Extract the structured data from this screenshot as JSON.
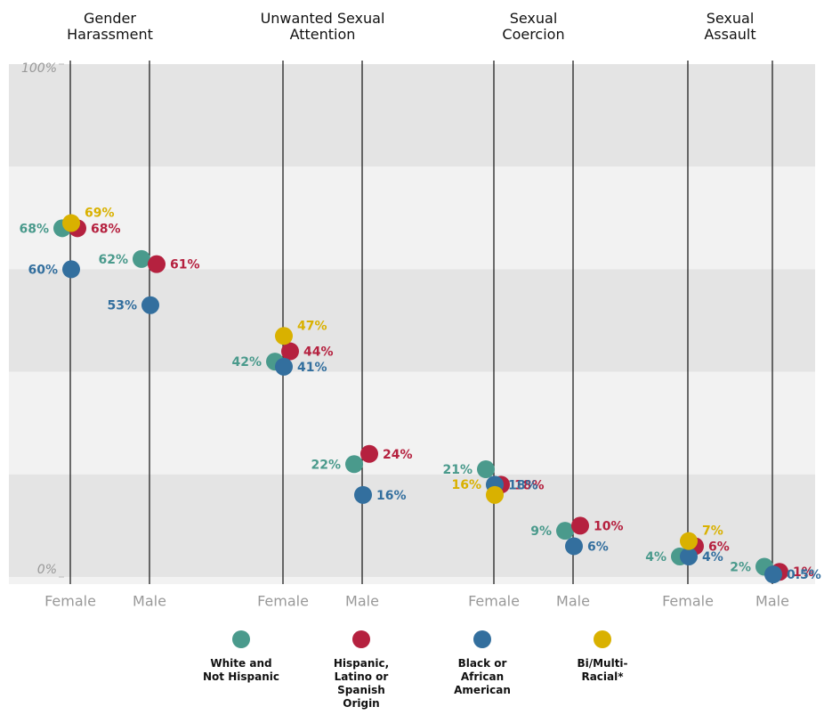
{
  "chart_data": {
    "type": "dot",
    "groups": [
      "Gender Harassment",
      "Unwanted Sexual Attention",
      "Sexual Coercion",
      "Sexual Assault"
    ],
    "categories": [
      "Female",
      "Male",
      "Female",
      "Male",
      "Female",
      "Male",
      "Female",
      "Male"
    ],
    "series": [
      {
        "name": "White and Not Hispanic",
        "color": "#4a9a8c",
        "values": [
          68,
          62,
          42,
          22,
          21,
          9,
          4,
          2
        ],
        "value_labels": [
          "68%",
          "62%",
          "42%",
          "22%",
          "21%",
          "9%",
          "4%",
          "2%"
        ]
      },
      {
        "name": "Hispanic, Latino or Spanish Origin",
        "color": "#b5213f",
        "values": [
          68,
          61,
          44,
          24,
          18,
          10,
          6,
          1
        ],
        "value_labels": [
          "68%",
          "61%",
          "44%",
          "24%",
          "18%",
          "10%",
          "6%",
          "1%"
        ]
      },
      {
        "name": "Black or African American",
        "color": "#336f9e",
        "values": [
          60,
          53,
          41,
          16,
          18,
          6,
          4,
          0.5
        ],
        "value_labels": [
          "60%",
          "53%",
          "41%",
          "16%",
          "18%",
          "6%",
          "4%",
          "0.5%"
        ]
      },
      {
        "name": "Bi/Multi-Racial*",
        "color": "#d9b100",
        "values": [
          69,
          null,
          47,
          null,
          16,
          null,
          7,
          null
        ],
        "value_labels": [
          "69%",
          null,
          "47%",
          null,
          "16%",
          null,
          "7%",
          null
        ]
      }
    ],
    "ylim": [
      0,
      100
    ],
    "yticks": [
      {
        "value": 0,
        "label": "0%"
      },
      {
        "value": 100,
        "label": "100%"
      }
    ]
  }
}
